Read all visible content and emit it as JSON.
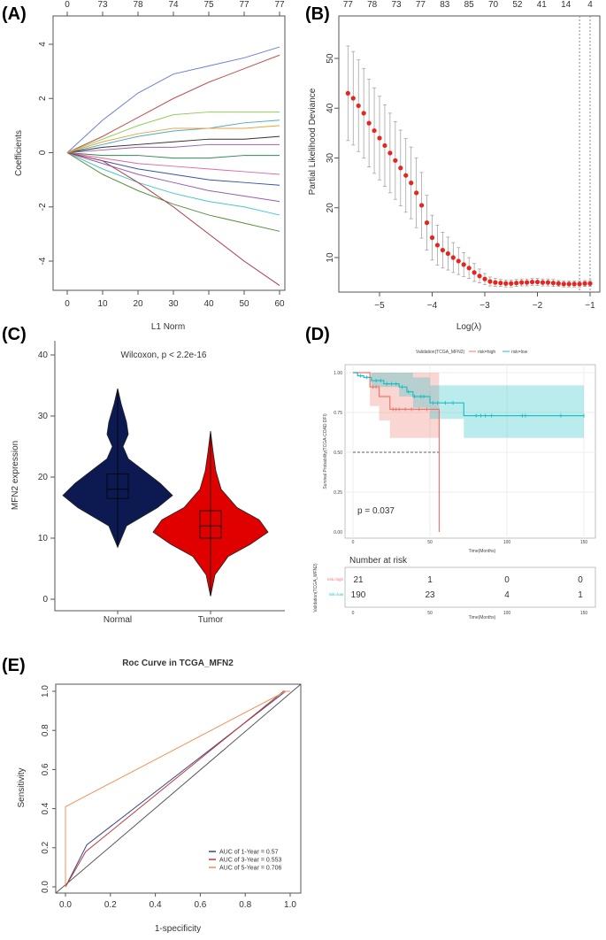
{
  "panel_labels": [
    "(A)",
    "(B)",
    "(C)",
    "(D)",
    "(E)"
  ],
  "chart_data": [
    {
      "panel": "(A)",
      "type": "line",
      "xlabel": "L1 Norm",
      "ylabel": "Coefficients",
      "xlim": [
        0,
        60
      ],
      "ylim": [
        -5,
        4
      ],
      "xticks": [
        0,
        10,
        20,
        30,
        40,
        50,
        60
      ],
      "yticks": [
        -4,
        -2,
        0,
        2,
        4
      ],
      "top_ticks": [
        "0",
        "73",
        "78",
        "74",
        "75",
        "77",
        "77"
      ],
      "x": [
        0,
        10,
        20,
        30,
        40,
        50,
        60
      ],
      "series": [
        {
          "color": "#6a7fd6",
          "values": [
            0,
            1.2,
            2.2,
            2.9,
            3.2,
            3.5,
            3.9
          ]
        },
        {
          "color": "#c0504d",
          "values": [
            0,
            0.6,
            1.3,
            2.0,
            2.6,
            3.1,
            3.6
          ]
        },
        {
          "color": "#8fce5c",
          "values": [
            0,
            0.5,
            1.0,
            1.4,
            1.5,
            1.5,
            1.5
          ]
        },
        {
          "color": "#4bacc6",
          "values": [
            0,
            0.3,
            0.6,
            0.8,
            0.9,
            1.1,
            1.2
          ]
        },
        {
          "color": "#333333",
          "values": [
            0,
            0.2,
            0.3,
            0.4,
            0.5,
            0.5,
            0.6
          ]
        },
        {
          "color": "#a05fb0",
          "values": [
            0,
            0.1,
            0.2,
            0.2,
            0.3,
            0.3,
            0.3
          ]
        },
        {
          "color": "#2e8b57",
          "values": [
            0,
            -0.1,
            -0.1,
            -0.2,
            -0.2,
            -0.1,
            -0.1
          ]
        },
        {
          "color": "#e06c9f",
          "values": [
            0,
            -0.2,
            -0.4,
            -0.5,
            -0.6,
            -0.7,
            -0.8
          ]
        },
        {
          "color": "#3355aa",
          "values": [
            0,
            -0.3,
            -0.6,
            -0.8,
            -1.0,
            -1.1,
            -1.2
          ]
        },
        {
          "color": "#9b59b6",
          "values": [
            0,
            -0.4,
            -0.8,
            -1.1,
            -1.4,
            -1.6,
            -1.8
          ]
        },
        {
          "color": "#46c8c8",
          "values": [
            0,
            -0.6,
            -1.1,
            -1.5,
            -1.8,
            -2.0,
            -2.3
          ]
        },
        {
          "color": "#5a8f3c",
          "values": [
            0,
            -0.8,
            -1.4,
            -1.9,
            -2.3,
            -2.6,
            -2.9
          ]
        },
        {
          "color": "#b03a48",
          "values": [
            0,
            -0.3,
            -1.1,
            -2.0,
            -3.0,
            -4.0,
            -4.9
          ]
        },
        {
          "color": "#e8a33d",
          "values": [
            0,
            0.4,
            0.7,
            0.9,
            0.9,
            0.9,
            1.0
          ]
        }
      ]
    },
    {
      "panel": "(B)",
      "type": "scatter",
      "xlabel": "Log(λ)",
      "ylabel": "Partial Likelihood Deviance",
      "xlim": [
        -5.7,
        -0.9
      ],
      "ylim": [
        3,
        54
      ],
      "xticks": [
        -5,
        -4,
        -3,
        -2,
        -1
      ],
      "yticks": [
        10,
        20,
        30,
        40,
        50
      ],
      "top_ticks": [
        "77",
        "78",
        "73",
        "77",
        "83",
        "85",
        "70",
        "52",
        "41",
        "14",
        "4"
      ],
      "vlines": [
        -1.2,
        -1.0
      ],
      "point_color": "#e8241c",
      "x": [
        -5.6,
        -5.5,
        -5.4,
        -5.3,
        -5.2,
        -5.1,
        -5.0,
        -4.9,
        -4.8,
        -4.7,
        -4.6,
        -4.5,
        -4.4,
        -4.3,
        -4.2,
        -4.1,
        -4.0,
        -3.9,
        -3.8,
        -3.7,
        -3.6,
        -3.5,
        -3.4,
        -3.3,
        -3.2,
        -3.1,
        -3.0,
        -2.9,
        -2.8,
        -2.7,
        -2.6,
        -2.5,
        -2.4,
        -2.3,
        -2.2,
        -2.1,
        -2.0,
        -1.9,
        -1.8,
        -1.7,
        -1.6,
        -1.5,
        -1.4,
        -1.3,
        -1.2,
        -1.1,
        -1.0
      ],
      "y": [
        43,
        42,
        40.5,
        39,
        37,
        35.5,
        34,
        32.5,
        31,
        29.5,
        28,
        26.5,
        25,
        23,
        20.5,
        17,
        14,
        12.5,
        11.5,
        10.8,
        10,
        9.3,
        8.6,
        7.9,
        7,
        6.3,
        5.7,
        5.2,
        5.0,
        4.9,
        4.8,
        4.8,
        4.9,
        5.0,
        5.0,
        5.1,
        5.1,
        5.0,
        5.0,
        4.9,
        4.8,
        4.7,
        4.7,
        4.7,
        4.7,
        4.8,
        4.8
      ],
      "se": [
        9.5,
        9.4,
        9.2,
        9,
        8.8,
        8.6,
        8.4,
        8.2,
        8,
        7.8,
        7.6,
        7.4,
        7.2,
        7,
        6.6,
        5.5,
        4.5,
        4,
        3.6,
        3.3,
        3,
        2.7,
        2.4,
        2.1,
        1.8,
        1.4,
        1.1,
        0.9,
        0.8,
        0.7,
        0.7,
        0.7,
        0.7,
        0.7,
        0.7,
        0.7,
        0.7,
        0.7,
        0.7,
        0.7,
        0.6,
        0.6,
        0.6,
        0.6,
        0.6,
        0.6,
        0.6
      ]
    },
    {
      "panel": "(C)",
      "type": "violin",
      "ylabel": "MFN2 expression",
      "annotation": "Wilcoxon, p < 2.2e-16",
      "ylim": [
        -1.5,
        42
      ],
      "yticks": [
        0,
        10,
        20,
        30,
        40
      ],
      "categories": [
        "Normal",
        "Tumor"
      ],
      "groups": [
        {
          "name": "Normal",
          "color": "#0d1a52",
          "min": 8.5,
          "q1": 16.5,
          "median": 18,
          "q3": 20.5,
          "max": 34.5
        },
        {
          "name": "Tumor",
          "color": "#e00000",
          "min": 0.5,
          "q1": 10,
          "median": 12,
          "q3": 14.5,
          "max": 27.5
        }
      ]
    },
    {
      "panel": "(D)",
      "type": "line",
      "title": "Validation(TCGA_MFN2)",
      "xlabel": "Time(Months)",
      "ylabel": "Survival Probability(TCGA-COAD DFI)",
      "annotation": "p = 0.037",
      "xlim": [
        0,
        150
      ],
      "ylim": [
        0,
        1
      ],
      "xticks": [
        0,
        50,
        100,
        150
      ],
      "yticks": [
        "0.00",
        "0.25",
        "0.50",
        "0.75",
        "1.00"
      ],
      "legend": [
        "risk=high",
        "risk=low"
      ],
      "series": [
        {
          "name": "risk=high",
          "color": "#f0766d",
          "steps": [
            [
              0,
              1
            ],
            [
              11,
              0.91
            ],
            [
              17,
              0.85
            ],
            [
              24,
              0.77
            ],
            [
              56,
              0
            ]
          ],
          "lower": [
            [
              0,
              1
            ],
            [
              11,
              0.79
            ],
            [
              17,
              0.7
            ],
            [
              24,
              0.59
            ],
            [
              56,
              0.59
            ]
          ],
          "upper": [
            [
              0,
              1
            ],
            [
              56,
              1
            ]
          ],
          "censor": [
            13,
            15,
            26,
            28,
            30,
            34,
            38,
            43,
            48
          ]
        },
        {
          "name": "risk=low",
          "color": "#1fbfc4",
          "steps": [
            [
              0,
              1
            ],
            [
              3,
              0.98
            ],
            [
              7,
              0.97
            ],
            [
              12,
              0.95
            ],
            [
              20,
              0.93
            ],
            [
              30,
              0.91
            ],
            [
              35,
              0.88
            ],
            [
              39,
              0.85
            ],
            [
              50,
              0.81
            ],
            [
              72,
              0.73
            ],
            [
              150,
              0.73
            ]
          ],
          "lower": [
            [
              0,
              1
            ],
            [
              12,
              0.91
            ],
            [
              30,
              0.85
            ],
            [
              39,
              0.78
            ],
            [
              50,
              0.71
            ],
            [
              72,
              0.59
            ],
            [
              150,
              0.59
            ]
          ],
          "upper": [
            [
              0,
              1
            ],
            [
              39,
              0.97
            ],
            [
              50,
              0.92
            ],
            [
              150,
              0.92
            ]
          ],
          "censor": [
            5,
            9,
            15,
            18,
            22,
            25,
            28,
            32,
            36,
            40,
            44,
            46,
            52,
            55,
            60,
            65,
            80,
            83,
            86,
            90,
            110,
            112,
            135,
            150
          ]
        }
      ],
      "median_line": {
        "y": 0.5,
        "x": 56
      },
      "risk_table": {
        "title": "Number at risk",
        "ylabel": "Validation(TCGA_MFN2)",
        "xlabel": "Time(Months)",
        "times": [
          0,
          50,
          100,
          150
        ],
        "rows": [
          {
            "name": "risk=high",
            "values": [
              21,
              1,
              0,
              0
            ]
          },
          {
            "name": "risk=low",
            "values": [
              190,
              23,
              4,
              1
            ]
          }
        ]
      }
    },
    {
      "panel": "(E)",
      "type": "line",
      "title": "Roc Curve in TCGA_MFN2",
      "xlabel": "1-specificity",
      "ylabel": "Sensitivity",
      "xlim": [
        0,
        1
      ],
      "ylim": [
        0,
        1
      ],
      "xticks": [
        "0.0",
        "0.2",
        "0.4",
        "0.6",
        "0.8",
        "1.0"
      ],
      "yticks": [
        "0.0",
        "0.2",
        "0.4",
        "0.6",
        "0.8",
        "1.0"
      ],
      "legend_position": "bottom-right",
      "series": [
        {
          "name": "AUC of 1-Year = 0.57",
          "color": "#3b4a86",
          "points": [
            [
              0,
              0
            ],
            [
              0.095,
              0.215
            ],
            [
              0.98,
              1
            ],
            [
              1,
              1
            ]
          ]
        },
        {
          "name": "AUC of 3-Year = 0.553",
          "color": "#c23a3a",
          "points": [
            [
              0,
              0
            ],
            [
              0.09,
              0.18
            ],
            [
              0.97,
              1
            ],
            [
              1,
              1
            ]
          ]
        },
        {
          "name": "AUC of 5-Year = 0.706",
          "color": "#f29158",
          "points": [
            [
              0,
              0
            ],
            [
              0,
              0.41
            ],
            [
              0.98,
              1
            ],
            [
              1,
              1
            ]
          ]
        }
      ]
    }
  ]
}
